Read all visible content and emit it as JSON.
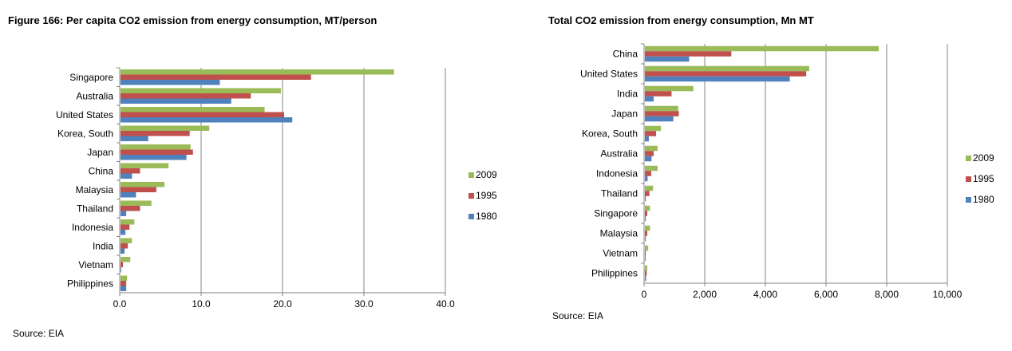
{
  "left": {
    "title": "Figure 166: Per capita CO2 emission from energy consumption, MT/person",
    "source": "Source: EIA"
  },
  "right": {
    "title": "Total CO2 emission from energy consumption, Mn MT",
    "source": "Source: EIA"
  },
  "colors": {
    "2009": "#9bbb59",
    "1995": "#c0504d",
    "1980": "#4f81bd",
    "grid": "#868686",
    "axis": "#868686"
  },
  "chart_data": [
    {
      "type": "bar",
      "orientation": "horizontal",
      "title": "Figure 166: Per capita CO2 emission from energy consumption, MT/person",
      "categories": [
        "Singapore",
        "Australia",
        "United States",
        "Korea, South",
        "Japan",
        "China",
        "Malaysia",
        "Thailand",
        "Indonesia",
        "India",
        "Vietnam",
        "Philippines"
      ],
      "series": [
        {
          "name": "2009",
          "values": [
            33.6,
            19.7,
            17.7,
            10.9,
            8.6,
            5.9,
            5.4,
            3.8,
            1.7,
            1.4,
            1.2,
            0.8
          ]
        },
        {
          "name": "1995",
          "values": [
            23.4,
            16.0,
            20.1,
            8.5,
            8.9,
            2.4,
            4.4,
            2.4,
            1.1,
            0.9,
            0.3,
            0.7
          ]
        },
        {
          "name": "1980",
          "values": [
            12.2,
            13.6,
            21.1,
            3.4,
            8.1,
            1.4,
            1.9,
            0.7,
            0.6,
            0.5,
            0.1,
            0.7
          ]
        }
      ],
      "xlim": [
        0,
        40
      ],
      "xticks": [
        "0.0",
        "10.0",
        "20.0",
        "30.0",
        "40.0"
      ],
      "grid": true,
      "legend": "right"
    },
    {
      "type": "bar",
      "orientation": "horizontal",
      "title": "Total CO2 emission from energy consumption, Mn MT",
      "categories": [
        "China",
        "United States",
        "India",
        "Japan",
        "Korea, South",
        "Australia",
        "Indonesia",
        "Thailand",
        "Singapore",
        "Malaysia",
        "Vietnam",
        "Philippines"
      ],
      "series": [
        {
          "name": "2009",
          "values": [
            7710,
            5420,
            1600,
            1100,
            530,
            420,
            420,
            270,
            170,
            170,
            110,
            80
          ]
        },
        {
          "name": "1995",
          "values": [
            2850,
            5320,
            880,
            1120,
            370,
            290,
            210,
            150,
            80,
            80,
            30,
            60
          ]
        },
        {
          "name": "1980",
          "values": [
            1460,
            4780,
            290,
            940,
            130,
            220,
            90,
            30,
            30,
            30,
            20,
            40
          ]
        }
      ],
      "xlim": [
        0,
        10000
      ],
      "xticks": [
        "0",
        "2,000",
        "4,000",
        "6,000",
        "8,000",
        "10,000"
      ],
      "grid": true,
      "legend": "right"
    }
  ]
}
